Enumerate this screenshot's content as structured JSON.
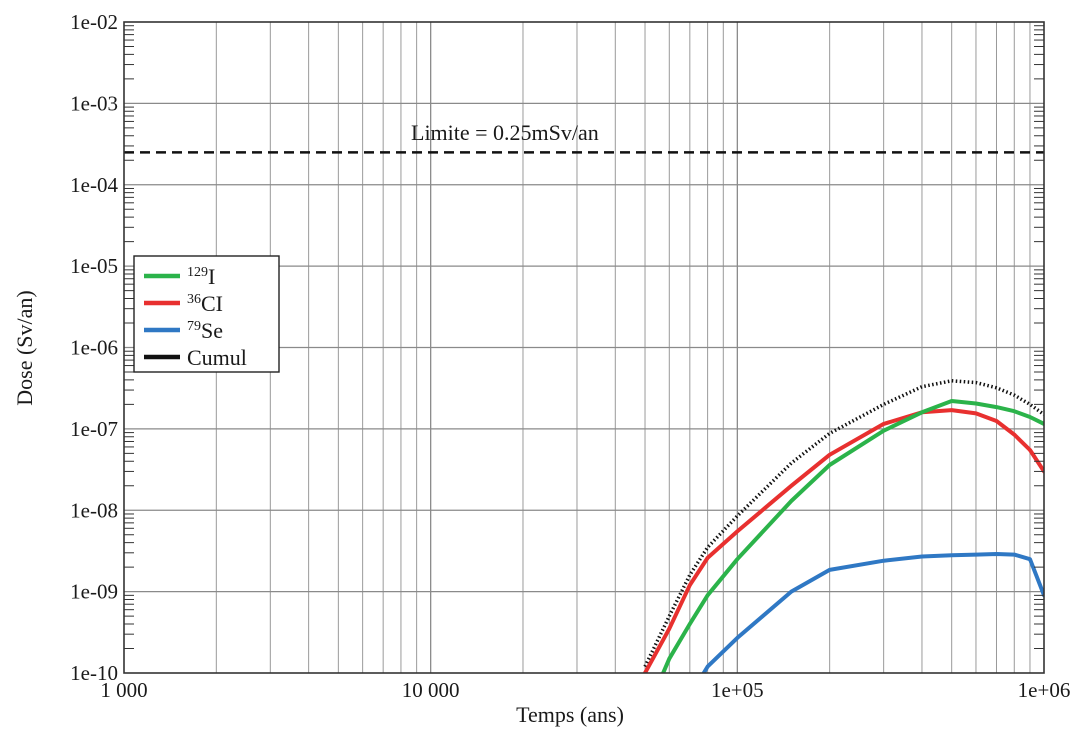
{
  "chart_data": {
    "type": "line",
    "xlabel": "Temps (ans)",
    "ylabel": "Dose (Sv/an)",
    "xscale": "log",
    "yscale": "log",
    "xlim": [
      1000,
      1000000
    ],
    "ylim": [
      1e-10,
      0.01
    ],
    "grid": true,
    "legend_position": "left",
    "x_ticks": [
      {
        "value": 1000,
        "label": "1 000"
      },
      {
        "value": 10000,
        "label": "10 000"
      },
      {
        "value": 100000,
        "label": "1e+05"
      },
      {
        "value": 1000000,
        "label": "1e+06"
      }
    ],
    "y_ticks": [
      {
        "value": 1e-10,
        "label": "1e-10"
      },
      {
        "value": 1e-09,
        "label": "1e-09"
      },
      {
        "value": 1e-08,
        "label": "1e-08"
      },
      {
        "value": 1e-07,
        "label": "1e-07"
      },
      {
        "value": 1e-06,
        "label": "1e-06"
      },
      {
        "value": 1e-05,
        "label": "1e-05"
      },
      {
        "value": 0.0001,
        "label": "1e-04"
      },
      {
        "value": 0.001,
        "label": "1e-03"
      },
      {
        "value": 0.01,
        "label": "1e-02"
      }
    ],
    "reference_line": {
      "y": 0.00025,
      "label": "Limite = 0.25mSv/an",
      "color": "#111111",
      "style": "dashed"
    },
    "series": [
      {
        "name_sup": "129",
        "name": "I",
        "color": "#2bb34a",
        "style": "solid",
        "x": [
          55000,
          60000,
          70000,
          80000,
          100000,
          150000,
          200000,
          300000,
          400000,
          500000,
          600000,
          700000,
          800000,
          900000,
          1000000
        ],
        "y": [
          7e-11,
          1.5e-10,
          4e-10,
          9e-10,
          2.5e-09,
          1.3e-08,
          3.6e-08,
          9.5e-08,
          1.6e-07,
          2.2e-07,
          2.05e-07,
          1.85e-07,
          1.65e-07,
          1.4e-07,
          1.15e-07
        ]
      },
      {
        "name_sup": "36",
        "name": "CI",
        "color": "#e8302f",
        "style": "solid",
        "x": [
          50000,
          60000,
          70000,
          80000,
          100000,
          150000,
          200000,
          300000,
          400000,
          500000,
          600000,
          700000,
          800000,
          900000,
          1000000
        ],
        "y": [
          1e-10,
          3.5e-10,
          1.2e-09,
          2.6e-09,
          5.5e-09,
          2e-08,
          4.8e-08,
          1.15e-07,
          1.6e-07,
          1.7e-07,
          1.55e-07,
          1.25e-07,
          8.5e-08,
          5.5e-08,
          3e-08
        ]
      },
      {
        "name_sup": "79",
        "name": "Se",
        "color": "#2f78c4",
        "style": "solid",
        "x": [
          75000,
          80000,
          100000,
          150000,
          200000,
          300000,
          400000,
          500000,
          600000,
          700000,
          800000,
          900000,
          1000000
        ],
        "y": [
          8e-11,
          1.2e-10,
          2.7e-10,
          1e-09,
          1.85e-09,
          2.4e-09,
          2.7e-09,
          2.8e-09,
          2.85e-09,
          2.9e-09,
          2.85e-09,
          2.5e-09,
          9e-10
        ]
      },
      {
        "name": "Cumul",
        "color": "#111111",
        "style": "dotted",
        "x": [
          50000,
          60000,
          70000,
          80000,
          100000,
          150000,
          200000,
          300000,
          400000,
          500000,
          600000,
          700000,
          800000,
          900000,
          1000000
        ],
        "y": [
          1.2e-10,
          5e-10,
          1.6e-09,
          3.5e-09,
          8.5e-09,
          3.8e-08,
          8.8e-08,
          2e-07,
          3.3e-07,
          3.9e-07,
          3.7e-07,
          3.2e-07,
          2.6e-07,
          2e-07,
          1.5e-07
        ]
      }
    ]
  }
}
